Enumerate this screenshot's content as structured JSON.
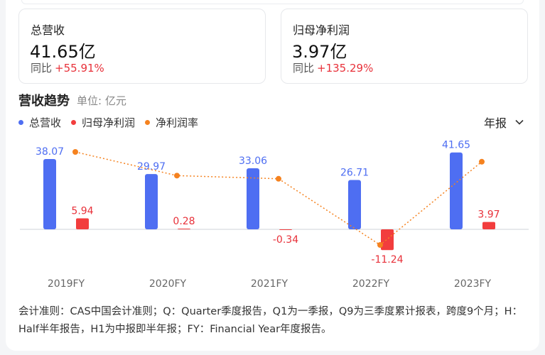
{
  "cards": [
    {
      "label": "总营收",
      "value": "41.65亿",
      "yoy_label": "同比",
      "yoy_value": "+55.91%"
    },
    {
      "label": "归母净利润",
      "value": "3.97亿",
      "yoy_label": "同比",
      "yoy_value": "+135.29%"
    }
  ],
  "section": {
    "title": "营收趋势",
    "unit": "单位: 亿元"
  },
  "period_select": {
    "value": "年报",
    "icon": "chevron-down-icon"
  },
  "colors": {
    "revenue": "#4e6ef2",
    "net_profit": "#f23d3d",
    "margin": "#f5821f",
    "positive_label": "#4e6ef2",
    "negative_label": "#e8313a"
  },
  "chart_data": {
    "type": "bar",
    "categories": [
      "2019FY",
      "2020FY",
      "2021FY",
      "2022FY",
      "2023FY"
    ],
    "series": [
      {
        "name": "总营收",
        "values": [
          38.07,
          29.97,
          33.06,
          26.71,
          41.65
        ],
        "labels": [
          "38.07",
          "29.97",
          "33.06",
          "26.71",
          "41.65"
        ]
      },
      {
        "name": "归母净利润",
        "values": [
          5.94,
          0.28,
          -0.34,
          -11.24,
          3.97
        ],
        "labels": [
          "5.94",
          "0.28",
          "-0.34",
          "-11.24",
          "3.97"
        ]
      },
      {
        "name": "净利润率",
        "type": "line",
        "values": [
          15.6,
          0.93,
          -1.03,
          -42.08,
          9.53
        ]
      }
    ],
    "legend_position": "top-left",
    "grid": false
  },
  "note": "会计准则：CAS中国会计准则；Q：Quarter季度报告，Q1为一季报，Q9为三季度累计报表，跨度9个月；H：Half半年报告，H1为中报即半年报；FY：Financial Year年度报告。"
}
